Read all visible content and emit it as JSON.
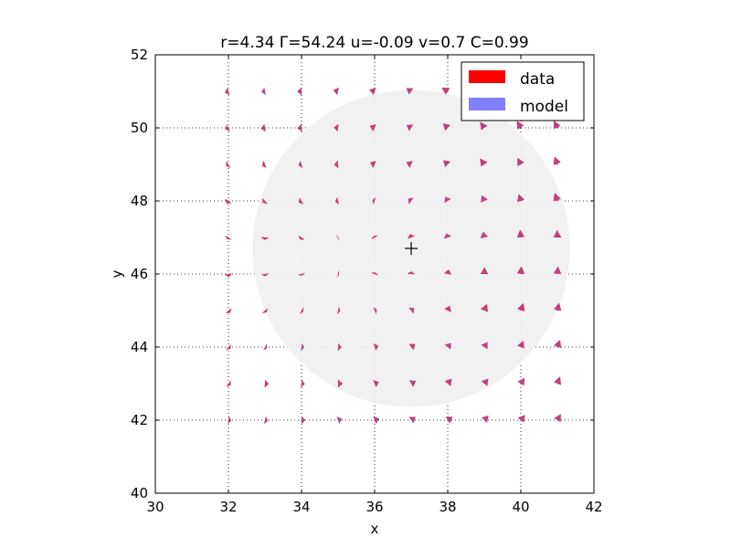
{
  "chart_data": {
    "type": "quiver",
    "title": "r=4.34 Γ=54.24 u=-0.09 v=0.7 C=0.99",
    "xlabel": "x",
    "ylabel": "y",
    "xlim": [
      30,
      42
    ],
    "ylim": [
      40,
      52
    ],
    "xticks": [
      "30",
      "32",
      "34",
      "36",
      "38",
      "40",
      "42"
    ],
    "yticks": [
      "40",
      "42",
      "44",
      "46",
      "48",
      "50",
      "52"
    ],
    "grid": true,
    "legend_position": "top-right",
    "legend": [
      {
        "label": "data",
        "color": "#ff0000"
      },
      {
        "label": "model",
        "color": "#8080ff"
      }
    ],
    "center": {
      "x": 37.0,
      "y": 46.7,
      "marker": "+"
    },
    "circle": {
      "cx": 37.0,
      "cy": 46.7,
      "radius": 4.34,
      "color": "#f0f0f0"
    },
    "circulation": 54.24,
    "u": -0.09,
    "v": 0.7,
    "correlation": 0.99,
    "grid_x": [
      32.0,
      33.0,
      34.0,
      35.0,
      36.0,
      37.0,
      38.0,
      39.0,
      40.0,
      41.0
    ],
    "grid_y": [
      42.0,
      43.0,
      44.0,
      45.0,
      46.0,
      47.0,
      48.0,
      49.0,
      50.0,
      51.0
    ],
    "arrow_scale": 0.11
  }
}
